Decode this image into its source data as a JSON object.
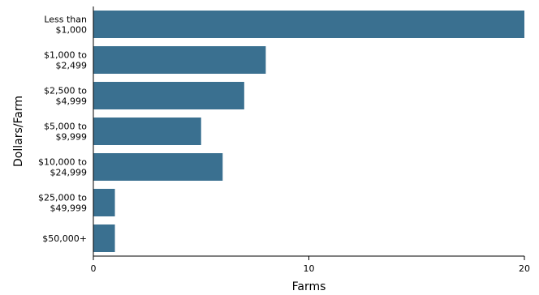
{
  "chart_data": {
    "type": "bar",
    "orientation": "horizontal",
    "xlabel": "Farms",
    "ylabel": "Dollars/Farm",
    "xlim": [
      0,
      20
    ],
    "xticks": [
      0,
      10,
      20
    ],
    "grid": false,
    "legend": "none",
    "bar_color": "#3a7090",
    "categories": [
      [
        "Less than",
        "$1,000"
      ],
      [
        "$1,000 to",
        "$2,499"
      ],
      [
        "$2,500 to",
        "$4,999"
      ],
      [
        "$5,000 to",
        "$9,999"
      ],
      [
        "$10,000 to",
        "$24,999"
      ],
      [
        "$25,000 to",
        "$49,999"
      ],
      [
        "$50,000+"
      ]
    ],
    "values": [
      20,
      8,
      7,
      5,
      6,
      1,
      1
    ]
  }
}
